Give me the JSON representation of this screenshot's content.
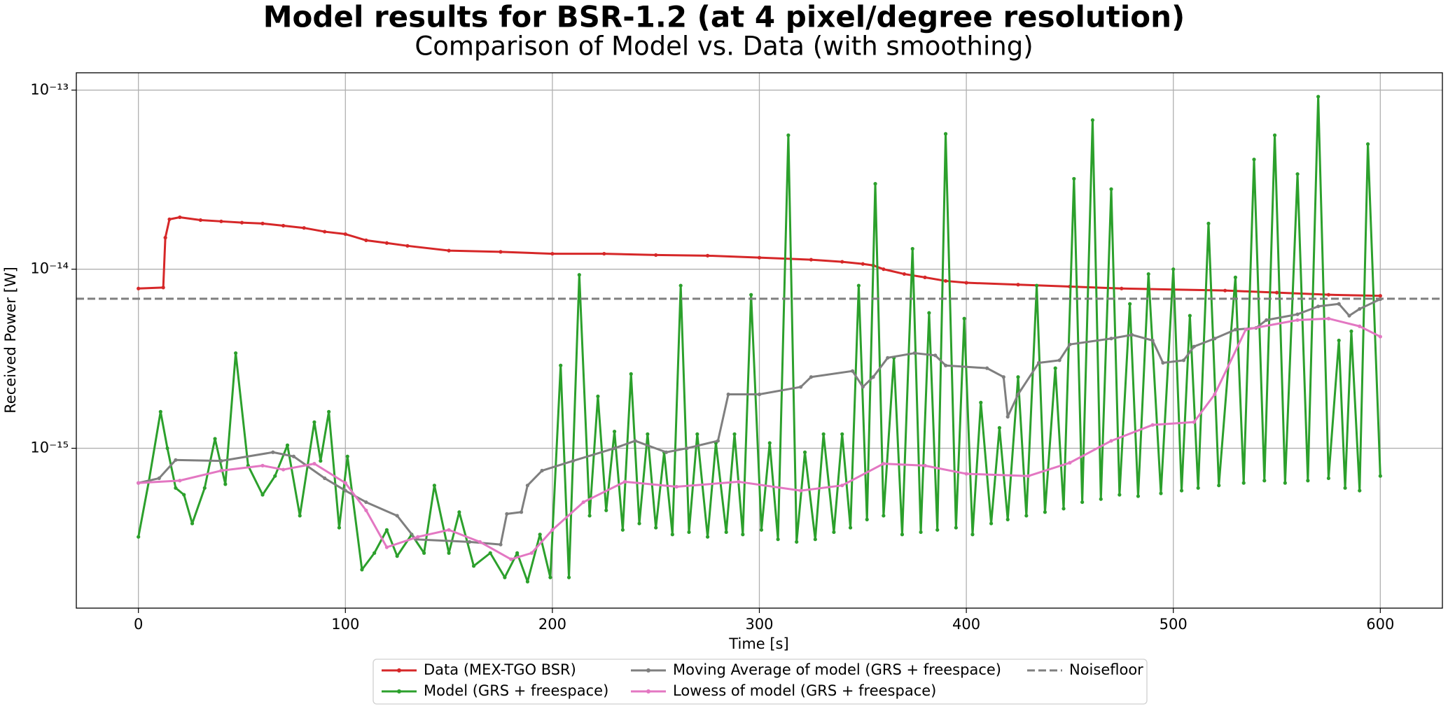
{
  "chart_data": {
    "type": "line",
    "title": "Model results for BSR-1.2 (at 4 pixel/degree resolution)",
    "subtitle": "Comparison of Model vs. Data (with smoothing)",
    "x_label": "Time [s]",
    "y_label": "Received Power [W]",
    "log_y": true,
    "grid": true,
    "legend": "lower center",
    "xlim": [
      -30,
      630
    ],
    "ylim": [
      1.28e-16,
      1.25e-13
    ],
    "xticks": [
      0,
      100,
      200,
      300,
      400,
      500,
      600
    ],
    "yticks": [
      {
        "value": 1e-15,
        "label": "10⁻¹⁵"
      },
      {
        "value": 1e-14,
        "label": "10⁻¹⁴"
      },
      {
        "value": 1e-13,
        "label": "10⁻¹³"
      }
    ],
    "series": [
      {
        "name": "Data (MEX-TGO BSR)",
        "color": "#d62728",
        "x": [
          0,
          12,
          13,
          15,
          20,
          30,
          40,
          50,
          60,
          70,
          80,
          90,
          100,
          110,
          120,
          130,
          150,
          175,
          200,
          225,
          250,
          275,
          300,
          325,
          340,
          350,
          355,
          360,
          370,
          380,
          390,
          400,
          425,
          450,
          475,
          500,
          525,
          550,
          575,
          600
        ],
        "values": [
          7.8e-15,
          7.9e-15,
          1.5e-14,
          1.9e-14,
          1.95e-14,
          1.88e-14,
          1.85e-14,
          1.82e-14,
          1.8e-14,
          1.75e-14,
          1.7e-14,
          1.62e-14,
          1.57e-14,
          1.45e-14,
          1.4e-14,
          1.35e-14,
          1.27e-14,
          1.25e-14,
          1.22e-14,
          1.22e-14,
          1.2e-14,
          1.19e-14,
          1.16e-14,
          1.13e-14,
          1.1e-14,
          1.07e-14,
          1.05e-14,
          1e-14,
          9.4e-15,
          9e-15,
          8.6e-15,
          8.4e-15,
          8.2e-15,
          8e-15,
          7.8e-15,
          7.7e-15,
          7.6e-15,
          7.4e-15,
          7.2e-15,
          7.1e-15
        ]
      },
      {
        "name": "Model (GRS + freespace)",
        "color": "#2ca02c",
        "x": [
          0,
          5,
          10.7,
          14,
          18,
          22,
          26,
          32,
          37,
          42,
          47,
          53,
          60,
          66,
          72,
          78,
          85,
          88,
          92,
          97,
          101,
          108,
          114,
          120,
          125,
          132,
          138,
          143,
          150,
          155,
          162,
          170,
          177,
          183,
          188,
          194,
          199,
          204,
          208,
          213,
          218,
          222,
          226,
          230,
          234,
          238,
          242,
          246,
          250,
          254,
          258,
          262,
          266,
          270,
          275,
          279,
          284,
          288,
          292,
          296,
          301,
          305,
          309,
          314,
          318,
          322,
          327,
          331,
          336,
          340,
          344,
          348,
          352,
          356,
          360,
          365,
          369,
          374,
          378,
          382,
          386,
          390,
          395,
          399,
          403,
          407,
          412,
          416,
          420,
          425,
          429,
          434,
          438,
          443,
          447,
          452,
          456,
          461,
          465,
          470,
          474,
          479,
          483,
          488,
          494,
          500,
          504,
          508,
          512,
          517,
          522,
          530,
          534,
          539,
          544,
          549,
          554,
          560,
          565,
          570,
          575,
          580,
          583,
          586,
          590,
          594,
          600
        ],
        "values": [
          3.2e-16,
          6.5e-16,
          1.6e-15,
          1e-15,
          6e-16,
          5.5e-16,
          3.8e-16,
          6e-16,
          1.13e-15,
          6.3e-16,
          3.4e-15,
          8e-16,
          5.5e-16,
          7e-16,
          1.04e-15,
          4.2e-16,
          1.4e-15,
          8.5e-16,
          1.6e-15,
          3.6e-16,
          9e-16,
          2.1e-16,
          2.6e-16,
          3.5e-16,
          2.5e-16,
          3.3e-16,
          2.6e-16,
          6.2e-16,
          2.6e-16,
          4.4e-16,
          2.2e-16,
          2.6e-16,
          1.9e-16,
          2.6e-16,
          1.8e-16,
          3.3e-16,
          1.9e-16,
          2.9e-15,
          1.9e-16,
          9.3e-15,
          4.2e-16,
          1.95e-15,
          4.5e-16,
          1.24e-15,
          3.5e-16,
          2.6e-15,
          3.8e-16,
          1.2e-15,
          3.6e-16,
          9.5e-16,
          3.3e-16,
          8.1e-15,
          3.4e-16,
          1.2e-15,
          3.2e-16,
          1.07e-15,
          3.4e-16,
          1.2e-15,
          3.3e-16,
          7.2e-15,
          3.5e-16,
          1.07e-15,
          3.1e-16,
          5.6e-14,
          3e-16,
          9.5e-16,
          3.1e-16,
          1.2e-15,
          3.4e-16,
          1.2e-15,
          3.6e-16,
          8.1e-15,
          4e-16,
          3e-14,
          4.2e-16,
          3.2e-15,
          3.3e-16,
          1.3e-14,
          3.4e-16,
          5.7e-15,
          3.5e-16,
          5.7e-14,
          3.6e-16,
          5.3e-15,
          3.3e-16,
          1.8e-15,
          3.8e-16,
          1.3e-15,
          4e-16,
          2.5e-15,
          4.2e-16,
          8.1e-15,
          4.4e-16,
          2.8e-15,
          4.6e-16,
          3.2e-14,
          5e-16,
          6.8e-14,
          5.2e-16,
          2.8e-14,
          5.5e-16,
          6.4e-15,
          5.4e-16,
          9.4e-15,
          5.6e-16,
          1e-14,
          5.8e-16,
          5.5e-15,
          6e-16,
          1.8e-14,
          6.2e-16,
          9e-15,
          6.4e-16,
          4.1e-14,
          6.6e-16,
          5.6e-14,
          6.4e-16,
          3.4e-14,
          6.6e-16,
          9.2e-14,
          6.8e-16,
          4e-15,
          6e-16,
          4.5e-15,
          5.8e-16,
          5e-14,
          7e-16
        ]
      },
      {
        "name": "Moving Average of model (GRS + freespace)",
        "color": "#7f7f7f",
        "x": [
          0,
          10,
          18,
          40,
          65,
          75,
          90,
          100,
          110,
          125,
          134,
          160,
          175,
          178,
          185,
          188,
          195,
          210,
          230,
          240,
          255,
          265,
          280,
          285,
          300,
          320,
          325,
          345,
          350,
          355,
          362,
          375,
          385,
          390,
          410,
          418,
          420,
          425,
          435,
          445,
          450,
          470,
          480,
          490,
          495,
          505,
          510,
          520,
          530,
          540,
          545,
          560,
          570,
          580,
          585,
          590,
          600
        ],
        "values": [
          6.4e-16,
          6.8e-16,
          8.6e-16,
          8.5e-16,
          9.5e-16,
          9e-16,
          6.8e-16,
          5.8e-16,
          5e-16,
          4.2e-16,
          3.1e-16,
          3e-16,
          2.9e-16,
          4.3e-16,
          4.4e-16,
          6.2e-16,
          7.5e-16,
          8.5e-16,
          1e-15,
          1.1e-15,
          9.5e-16,
          1e-15,
          1.1e-15,
          2e-15,
          2e-15,
          2.2e-15,
          2.5e-15,
          2.7e-15,
          2.2e-15,
          2.5e-15,
          3.2e-15,
          3.4e-15,
          3.3e-15,
          2.9e-15,
          2.8e-15,
          2.5e-15,
          1.5e-15,
          2e-15,
          3e-15,
          3.1e-15,
          3.8e-15,
          4.1e-15,
          4.3e-15,
          4e-15,
          3e-15,
          3.1e-15,
          3.7e-15,
          4.1e-15,
          4.6e-15,
          4.7e-15,
          5.2e-15,
          5.6e-15,
          6.2e-15,
          6.4e-15,
          5.5e-15,
          6e-15,
          6.8e-15
        ]
      },
      {
        "name": "Lowess of model (GRS + freespace)",
        "color": "#e377c2",
        "x": [
          0,
          20,
          40,
          60,
          70,
          85,
          100,
          110,
          120,
          135,
          150,
          165,
          180,
          190,
          200,
          215,
          235,
          260,
          290,
          320,
          340,
          360,
          380,
          400,
          430,
          450,
          470,
          490,
          510,
          520,
          535,
          560,
          575,
          590,
          600
        ],
        "values": [
          6.4e-16,
          6.6e-16,
          7.5e-16,
          8e-16,
          7.6e-16,
          8.2e-16,
          6.4e-16,
          4.5e-16,
          2.8e-16,
          3.2e-16,
          3.5e-16,
          3e-16,
          2.4e-16,
          2.6e-16,
          3.5e-16,
          5e-16,
          6.5e-16,
          6.1e-16,
          6.5e-16,
          5.8e-16,
          6.2e-16,
          8.2e-16,
          8e-16,
          7.2e-16,
          7e-16,
          8.3e-16,
          1.1e-15,
          1.35e-15,
          1.4e-15,
          2e-15,
          4.6e-15,
          5.2e-15,
          5.3e-15,
          4.8e-15,
          4.2e-15
        ]
      }
    ],
    "noisefloor": {
      "name": "Noisefloor",
      "value": 6.84e-15,
      "color": "#7f7f7f"
    }
  }
}
